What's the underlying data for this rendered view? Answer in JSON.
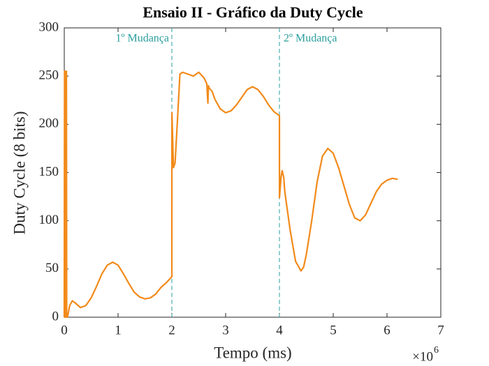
{
  "chart_data": {
    "type": "line",
    "title": "Ensaio II - Gráfico da Duty Cycle",
    "x_label": "Tempo (ms)",
    "y_label": "Duty Cycle (8 bits)",
    "x_scale_base": "×10",
    "x_scale_exponent": "6",
    "color": "#f28a1a",
    "x": [
      0,
      0.005,
      0.01,
      0.015,
      0.02,
      0.025,
      0.03,
      0.04,
      0.045,
      0.06,
      0.1,
      0.15,
      0.2,
      0.3,
      0.4,
      0.5,
      0.6,
      0.7,
      0.8,
      0.9,
      1.0,
      1.1,
      1.2,
      1.3,
      1.4,
      1.5,
      1.6,
      1.7,
      1.8,
      1.9,
      2.0,
      2.001,
      2.03,
      2.06,
      2.1,
      2.15,
      2.2,
      2.3,
      2.4,
      2.5,
      2.6,
      2.65,
      2.67,
      2.68,
      2.69,
      2.75,
      2.8,
      2.9,
      3.0,
      3.1,
      3.2,
      3.3,
      3.4,
      3.5,
      3.6,
      3.7,
      3.8,
      3.9,
      4.0,
      4.001,
      4.03,
      4.05,
      4.08,
      4.1,
      4.2,
      4.3,
      4.4,
      4.45,
      4.5,
      4.6,
      4.7,
      4.8,
      4.9,
      5.0,
      5.1,
      5.2,
      5.3,
      5.4,
      5.5,
      5.6,
      5.7,
      5.8,
      5.9,
      6.0,
      6.1,
      6.2
    ],
    "values": [
      0,
      255,
      240,
      255,
      0,
      255,
      245,
      255,
      0,
      0,
      12,
      17,
      15,
      10,
      12,
      20,
      32,
      45,
      54,
      57,
      54,
      45,
      35,
      26,
      21,
      19,
      20,
      24,
      31,
      36,
      42,
      212,
      155,
      160,
      200,
      252,
      254,
      252,
      250,
      254,
      248,
      242,
      222,
      240,
      238,
      234,
      226,
      216,
      212,
      214,
      220,
      228,
      236,
      239,
      236,
      229,
      220,
      213,
      209,
      124,
      145,
      152,
      145,
      130,
      90,
      58,
      48,
      52,
      65,
      100,
      140,
      167,
      175,
      170,
      155,
      136,
      117,
      103,
      100,
      106,
      118,
      130,
      138,
      142,
      144,
      143
    ],
    "vlines": [
      {
        "x": 2,
        "label": "1º Mudança"
      },
      {
        "x": 4,
        "label": "2º Mudança"
      }
    ],
    "vline_color": "#2a9d9d",
    "xlim": [
      0,
      7
    ],
    "xticks": [
      0,
      1,
      2,
      3,
      4,
      5,
      6,
      7
    ],
    "ylim": [
      0,
      300
    ],
    "yticks": [
      0,
      50,
      100,
      150,
      200,
      250,
      300
    ],
    "grid": false
  }
}
